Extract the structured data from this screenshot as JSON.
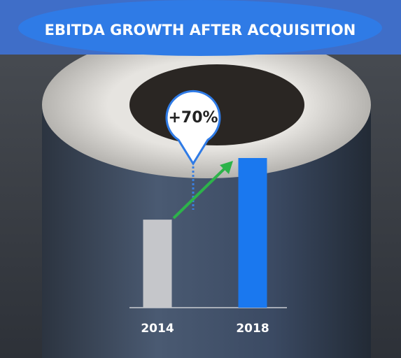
{
  "chart_data": {
    "type": "bar",
    "title": "EBITDA GROWTH AFTER ACQUISITION",
    "categories": [
      "2014",
      "2018"
    ],
    "values": [
      100,
      170
    ],
    "colors": [
      "#c5c6ca",
      "#1a78ef"
    ],
    "annotation": "+70%"
  }
}
